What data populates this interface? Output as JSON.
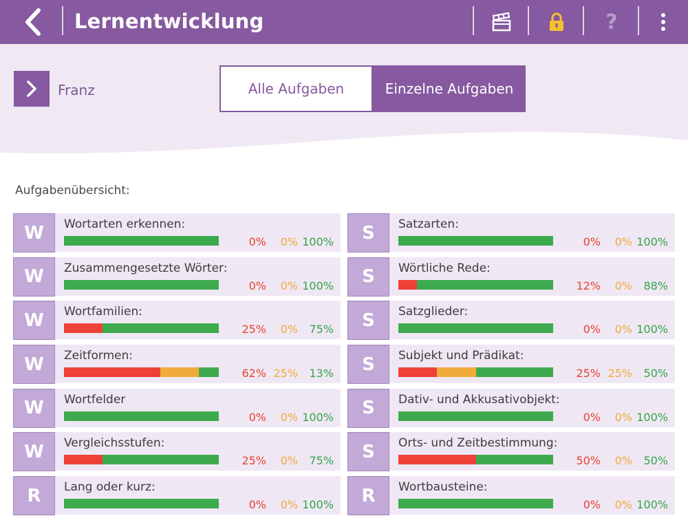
{
  "header": {
    "title": "Lernentwicklung",
    "tools": [
      "back-icon",
      "clapperboard-icon",
      "lock-icon",
      "help-icon",
      "more-vertical-icon"
    ],
    "help_label": "?"
  },
  "student": {
    "name": "Franz"
  },
  "tabs": [
    {
      "label": "Alle Aufgaben",
      "active": false
    },
    {
      "label": "Einzelne Aufgaben",
      "active": true
    }
  ],
  "section_title": "Aufgabenübersicht:",
  "colors": {
    "brand": "#8659a0",
    "red": "#ee4137",
    "orange": "#f0ac3a",
    "green": "#3eaa4e"
  },
  "tasks_left": [
    {
      "badge": "W",
      "name": "Wortarten erkennen:",
      "red": 0,
      "orange": 0,
      "green": 100,
      "red_label": "0%",
      "orange_label": "0%",
      "green_label": "100%"
    },
    {
      "badge": "W",
      "name": "Zusammengesetzte Wörter:",
      "red": 0,
      "orange": 0,
      "green": 100,
      "red_label": "0%",
      "orange_label": "0%",
      "green_label": "100%"
    },
    {
      "badge": "W",
      "name": "Wortfamilien:",
      "red": 25,
      "orange": 0,
      "green": 75,
      "red_label": "25%",
      "orange_label": "0%",
      "green_label": "75%"
    },
    {
      "badge": "W",
      "name": "Zeitformen:",
      "red": 62,
      "orange": 25,
      "green": 13,
      "red_label": "62%",
      "orange_label": "25%",
      "green_label": "13%"
    },
    {
      "badge": "W",
      "name": "Wortfelder",
      "red": 0,
      "orange": 0,
      "green": 100,
      "red_label": "0%",
      "orange_label": "0%",
      "green_label": "100%"
    },
    {
      "badge": "W",
      "name": "Vergleichsstufen:",
      "red": 25,
      "orange": 0,
      "green": 75,
      "red_label": "25%",
      "orange_label": "0%",
      "green_label": "75%"
    },
    {
      "badge": "R",
      "name": "Lang oder kurz:",
      "red": 0,
      "orange": 0,
      "green": 100,
      "red_label": "0%",
      "orange_label": "0%",
      "green_label": "100%"
    }
  ],
  "tasks_right": [
    {
      "badge": "S",
      "name": "Satzarten:",
      "red": 0,
      "orange": 0,
      "green": 100,
      "red_label": "0%",
      "orange_label": "0%",
      "green_label": "100%"
    },
    {
      "badge": "S",
      "name": "Wörtliche Rede:",
      "red": 12,
      "orange": 0,
      "green": 88,
      "red_label": "12%",
      "orange_label": "0%",
      "green_label": "88%"
    },
    {
      "badge": "S",
      "name": "Satzglieder:",
      "red": 0,
      "orange": 0,
      "green": 100,
      "red_label": "0%",
      "orange_label": "0%",
      "green_label": "100%"
    },
    {
      "badge": "S",
      "name": "Subjekt und Prädikat:",
      "red": 25,
      "orange": 25,
      "green": 50,
      "red_label": "25%",
      "orange_label": "25%",
      "green_label": "50%"
    },
    {
      "badge": "S",
      "name": "Dativ- und Akkusativobjekt:",
      "red": 0,
      "orange": 0,
      "green": 100,
      "red_label": "0%",
      "orange_label": "0%",
      "green_label": "100%"
    },
    {
      "badge": "S",
      "name": "Orts- und Zeitbestimmung:",
      "red": 50,
      "orange": 0,
      "green": 50,
      "red_label": "50%",
      "orange_label": "0%",
      "green_label": "50%"
    },
    {
      "badge": "R",
      "name": "Wortbausteine:",
      "red": 0,
      "orange": 0,
      "green": 100,
      "red_label": "0%",
      "orange_label": "0%",
      "green_label": "100%"
    }
  ]
}
